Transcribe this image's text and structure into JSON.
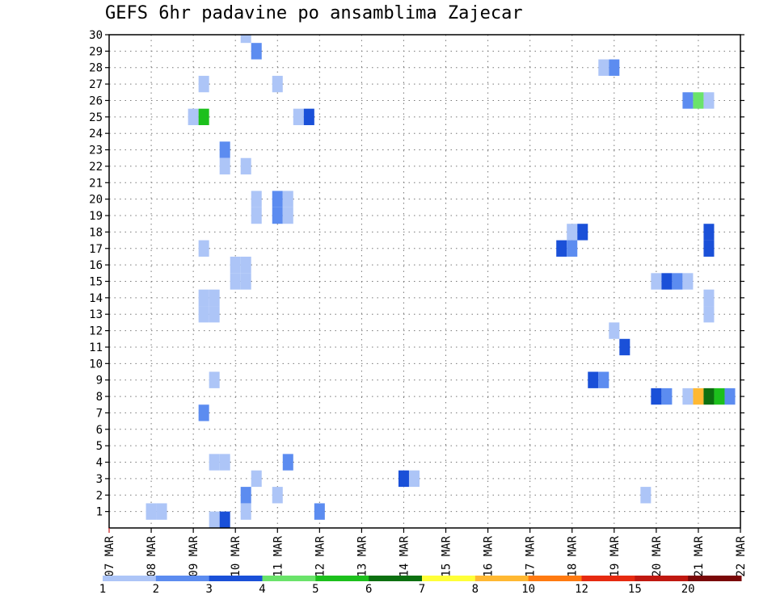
{
  "title": "GEFS 6hr padavine po ansamblima Zajecar",
  "chart_data": {
    "type": "heatmap",
    "title": "GEFS 6hr padavine po ansamblima Zajecar",
    "xlabel": "",
    "ylabel": "",
    "grid": true,
    "x_tick_labels": [
      "07 MAR",
      "08 MAR",
      "09 MAR",
      "10 MAR",
      "11 MAR",
      "12 MAR",
      "13 MAR",
      "14 MAR",
      "15 MAR",
      "16 MAR",
      "17 MAR",
      "18 MAR",
      "19 MAR",
      "20 MAR",
      "21 MAR",
      "22 MAR"
    ],
    "x_range_days": [
      0,
      15
    ],
    "y_tick_labels": [
      1,
      2,
      3,
      4,
      5,
      6,
      7,
      8,
      9,
      10,
      11,
      12,
      13,
      14,
      15,
      16,
      17,
      18,
      19,
      20,
      21,
      22,
      23,
      24,
      25,
      26,
      27,
      28,
      29,
      30
    ],
    "y_range": [
      0,
      30
    ],
    "legend": {
      "position": "bottom",
      "labels": [
        "1",
        "2",
        "3",
        "4",
        "5",
        "6",
        "7",
        "8",
        "10",
        "12",
        "15",
        "20"
      ],
      "colors": [
        "#adc5f7",
        "#5c8cf0",
        "#1a50d8",
        "#6ae36a",
        "#1cc01c",
        "#0c7010",
        "#ffff38",
        "#ffb832",
        "#ff7a10",
        "#e62a10",
        "#c01810",
        "#7a0808"
      ]
    },
    "cells": [
      {
        "member": 30,
        "time": 3.25,
        "color": "#adc5f7"
      },
      {
        "member": 29,
        "time": 3.5,
        "color": "#5c8cf0"
      },
      {
        "member": 28,
        "time": 11.75,
        "color": "#adc5f7"
      },
      {
        "member": 28,
        "time": 12,
        "color": "#5c8cf0"
      },
      {
        "member": 27,
        "time": 2.25,
        "color": "#adc5f7"
      },
      {
        "member": 27,
        "time": 4,
        "color": "#adc5f7"
      },
      {
        "member": 26,
        "time": 13.75,
        "color": "#5c8cf0"
      },
      {
        "member": 26,
        "time": 14,
        "color": "#6ae36a"
      },
      {
        "member": 26,
        "time": 14.25,
        "color": "#adc5f7"
      },
      {
        "member": 25,
        "time": 2,
        "color": "#adc5f7"
      },
      {
        "member": 25,
        "time": 2.25,
        "color": "#1cc01c"
      },
      {
        "member": 25,
        "time": 4.5,
        "color": "#adc5f7"
      },
      {
        "member": 25,
        "time": 4.75,
        "color": "#1a50d8"
      },
      {
        "member": 23,
        "time": 2.75,
        "color": "#5c8cf0"
      },
      {
        "member": 22,
        "time": 2.75,
        "color": "#adc5f7"
      },
      {
        "member": 22,
        "time": 3.25,
        "color": "#adc5f7"
      },
      {
        "member": 20,
        "time": 3.5,
        "color": "#adc5f7"
      },
      {
        "member": 20,
        "time": 4,
        "color": "#5c8cf0"
      },
      {
        "member": 20,
        "time": 4.25,
        "color": "#adc5f7"
      },
      {
        "member": 19,
        "time": 3.5,
        "color": "#adc5f7"
      },
      {
        "member": 19,
        "time": 4,
        "color": "#5c8cf0"
      },
      {
        "member": 19,
        "time": 4.25,
        "color": "#adc5f7"
      },
      {
        "member": 18,
        "time": 11,
        "color": "#adc5f7"
      },
      {
        "member": 18,
        "time": 11.25,
        "color": "#1a50d8"
      },
      {
        "member": 18,
        "time": 14.25,
        "color": "#1a50d8"
      },
      {
        "member": 17,
        "time": 2.25,
        "color": "#adc5f7"
      },
      {
        "member": 17,
        "time": 10.75,
        "color": "#1a50d8"
      },
      {
        "member": 17,
        "time": 11,
        "color": "#5c8cf0"
      },
      {
        "member": 17,
        "time": 14.25,
        "color": "#1a50d8"
      },
      {
        "member": 16,
        "time": 3,
        "color": "#adc5f7"
      },
      {
        "member": 16,
        "time": 3.25,
        "color": "#adc5f7"
      },
      {
        "member": 15,
        "time": 3,
        "color": "#adc5f7"
      },
      {
        "member": 15,
        "time": 3.25,
        "color": "#adc5f7"
      },
      {
        "member": 15,
        "time": 13,
        "color": "#adc5f7"
      },
      {
        "member": 15,
        "time": 13.25,
        "color": "#1a50d8"
      },
      {
        "member": 15,
        "time": 13.5,
        "color": "#5c8cf0"
      },
      {
        "member": 15,
        "time": 13.75,
        "color": "#adc5f7"
      },
      {
        "member": 14,
        "time": 2.25,
        "color": "#adc5f7"
      },
      {
        "member": 14,
        "time": 2.5,
        "color": "#adc5f7"
      },
      {
        "member": 14,
        "time": 14.25,
        "color": "#adc5f7"
      },
      {
        "member": 13,
        "time": 2.25,
        "color": "#adc5f7"
      },
      {
        "member": 13,
        "time": 2.5,
        "color": "#adc5f7"
      },
      {
        "member": 13,
        "time": 14.25,
        "color": "#adc5f7"
      },
      {
        "member": 12,
        "time": 12,
        "color": "#adc5f7"
      },
      {
        "member": 11,
        "time": 12.25,
        "color": "#1a50d8"
      },
      {
        "member": 9,
        "time": 2.5,
        "color": "#adc5f7"
      },
      {
        "member": 9,
        "time": 11.5,
        "color": "#1a50d8"
      },
      {
        "member": 9,
        "time": 11.75,
        "color": "#5c8cf0"
      },
      {
        "member": 8,
        "time": 13,
        "color": "#1a50d8"
      },
      {
        "member": 8,
        "time": 13.25,
        "color": "#5c8cf0"
      },
      {
        "member": 8,
        "time": 13.75,
        "color": "#adc5f7"
      },
      {
        "member": 8,
        "time": 14,
        "color": "#ffb832"
      },
      {
        "member": 8,
        "time": 14.25,
        "color": "#0c7010"
      },
      {
        "member": 8,
        "time": 14.5,
        "color": "#1cc01c"
      },
      {
        "member": 8,
        "time": 14.75,
        "color": "#5c8cf0"
      },
      {
        "member": 7,
        "time": 2.25,
        "color": "#5c8cf0"
      },
      {
        "member": 4,
        "time": 2.5,
        "color": "#adc5f7"
      },
      {
        "member": 4,
        "time": 2.75,
        "color": "#adc5f7"
      },
      {
        "member": 4,
        "time": 4.25,
        "color": "#5c8cf0"
      },
      {
        "member": 3,
        "time": 3.5,
        "color": "#adc5f7"
      },
      {
        "member": 3,
        "time": 7,
        "color": "#1a50d8"
      },
      {
        "member": 3,
        "time": 7.25,
        "color": "#adc5f7"
      },
      {
        "member": 2,
        "time": 3.25,
        "color": "#5c8cf0"
      },
      {
        "member": 2,
        "time": 4,
        "color": "#adc5f7"
      },
      {
        "member": 2,
        "time": 12.75,
        "color": "#adc5f7"
      },
      {
        "member": 1,
        "time": 1,
        "color": "#adc5f7"
      },
      {
        "member": 1,
        "time": 1.25,
        "color": "#adc5f7"
      },
      {
        "member": 1,
        "time": 3.25,
        "color": "#adc5f7"
      },
      {
        "member": 1,
        "time": 5,
        "color": "#5c8cf0"
      },
      {
        "member": 0.5,
        "time": 2.5,
        "color": "#adc5f7"
      },
      {
        "member": 0.5,
        "time": 2.75,
        "color": "#1a50d8"
      }
    ]
  }
}
